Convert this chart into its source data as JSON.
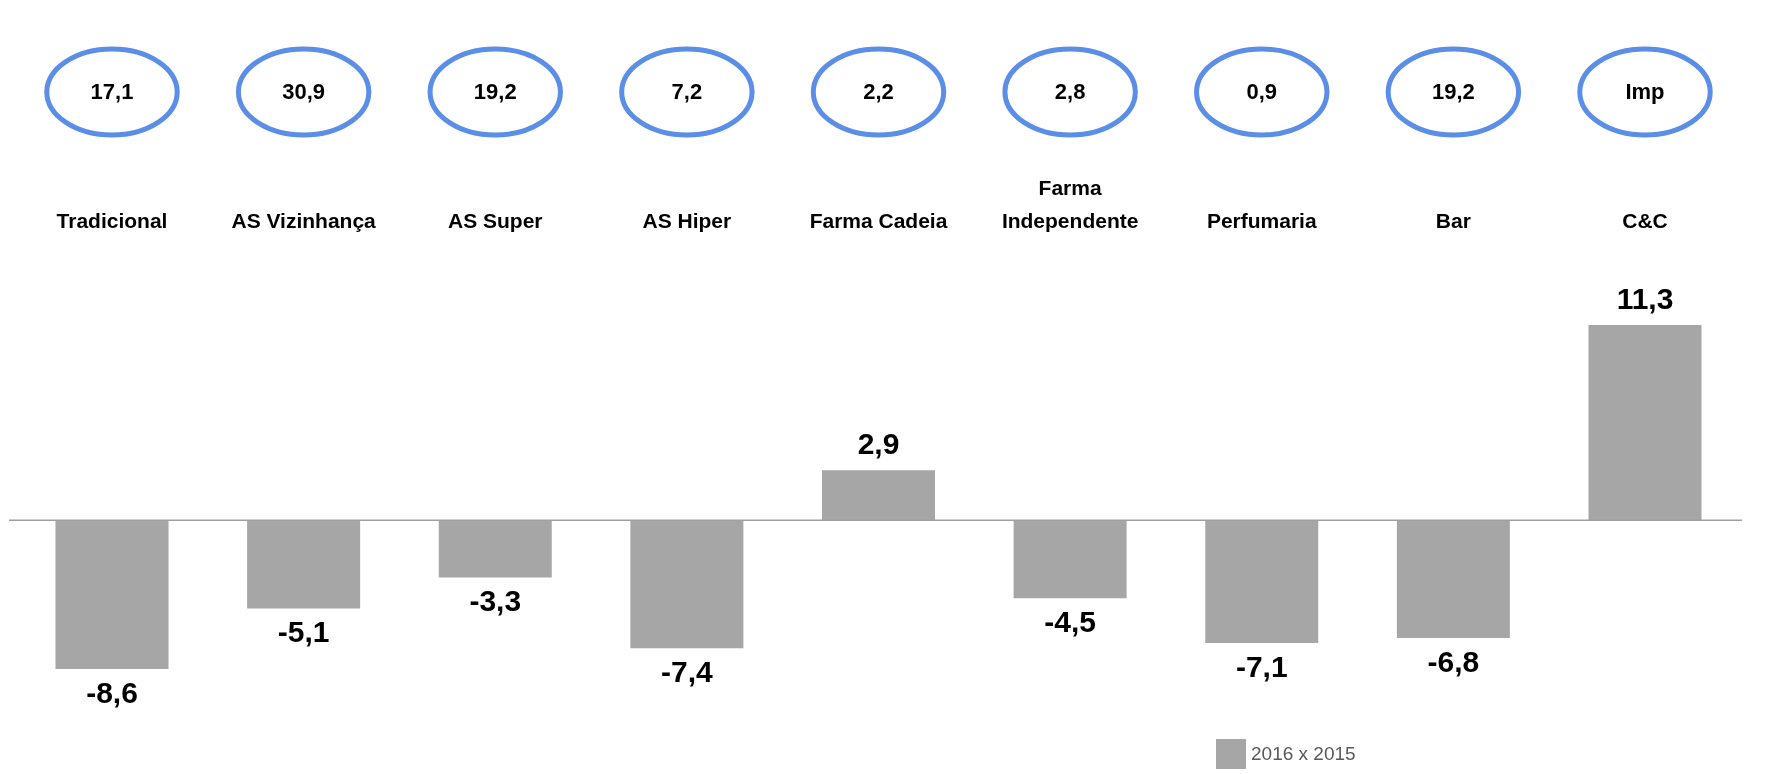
{
  "chart_data": {
    "type": "bar",
    "categories": [
      "Tradicional",
      "AS Vizinhança",
      "AS Super",
      "AS Hiper",
      "Farma Cadeia",
      "Farma Independente",
      "Perfumaria",
      "Bar",
      "C&C"
    ],
    "series": [
      {
        "name": "2016 x 2015",
        "color": "#a6a6a6",
        "values": [
          -8.6,
          -5.1,
          -3.3,
          -7.4,
          2.9,
          -4.5,
          -7.1,
          -6.8,
          11.3
        ],
        "value_labels": [
          "-8,6",
          "-5,1",
          "-3,3",
          "-7,4",
          "2,9",
          "-4,5",
          "-7,1",
          "-6,8",
          "11,3"
        ]
      }
    ],
    "legend": "bottom right",
    "annotations": [
      "17,1",
      "30,9",
      "19,2",
      "7,2",
      "2,2",
      "2,8",
      "0,9",
      "19,2",
      "Imp"
    ]
  }
}
